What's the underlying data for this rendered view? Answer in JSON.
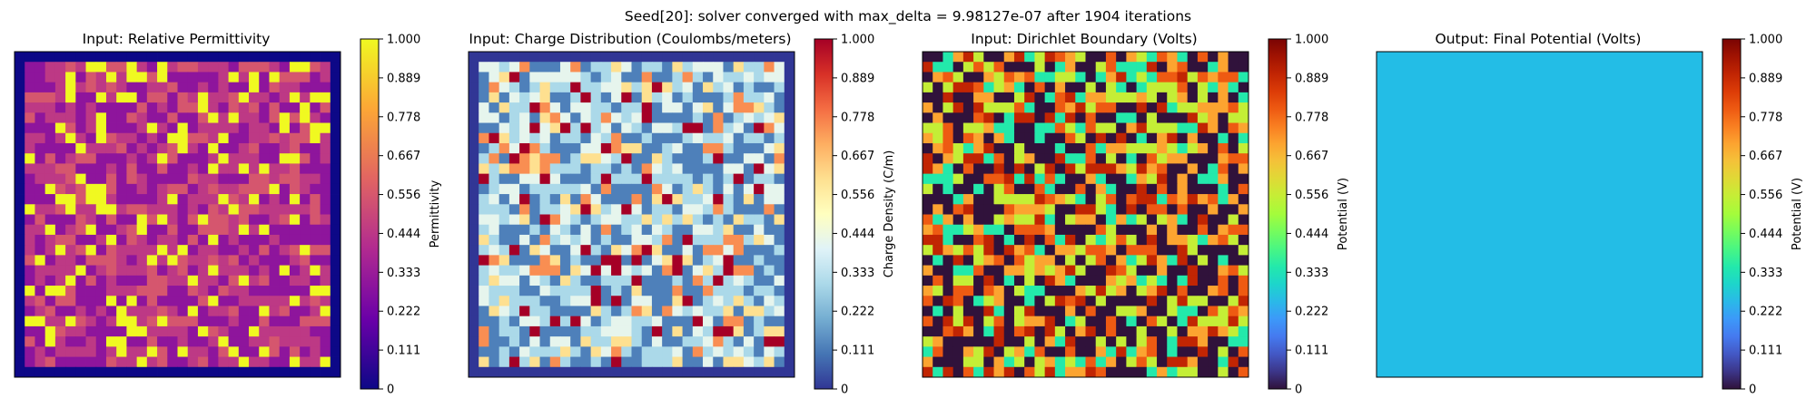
{
  "figure": {
    "suptitle": "Seed[20]: solver converged with max_delta = 9.98127e-07 after 1904 iterations"
  },
  "chart_data": [
    {
      "type": "heatmap",
      "title": "Input: Relative Permittivity",
      "colormap": "plasma",
      "colorbar_label": "Permittivity",
      "colorbar_ticks": [
        "0",
        "0.111",
        "0.222",
        "0.333",
        "0.444",
        "0.556",
        "0.667",
        "0.778",
        "0.889",
        "1.000"
      ],
      "vmin": 0,
      "vmax": 1,
      "grid_size": 32,
      "border_value": 0.0,
      "interior_levels": [
        0.3,
        0.45,
        0.55,
        1.0
      ],
      "interior_weights": [
        0.35,
        0.3,
        0.2,
        0.15
      ]
    },
    {
      "type": "heatmap",
      "title": "Input: Charge Distribution (Coulombs/meters)",
      "colormap": "RdYlBu_r",
      "colorbar_label": "Charge Density (C/m)",
      "colorbar_ticks": [
        "0",
        "0.111",
        "0.222",
        "0.333",
        "0.444",
        "0.556",
        "0.667",
        "0.778",
        "0.889",
        "1.000"
      ],
      "vmin": 0,
      "vmax": 1,
      "grid_size": 32,
      "border_value": 0.0,
      "interior_levels": [
        0.12,
        0.3,
        0.42,
        0.6,
        0.75,
        1.0
      ],
      "interior_weights": [
        0.3,
        0.25,
        0.2,
        0.1,
        0.07,
        0.08
      ]
    },
    {
      "type": "heatmap",
      "title": "Input: Dirichlet Boundary (Volts)",
      "colormap": "turbo",
      "colorbar_label": "Potential (V)",
      "colorbar_ticks": [
        "0",
        "0.111",
        "0.222",
        "0.333",
        "0.444",
        "0.556",
        "0.667",
        "0.778",
        "0.889",
        "1.000"
      ],
      "vmin": 0,
      "vmax": 1,
      "grid_size": 32,
      "border_value": null,
      "interior_levels": [
        0.0,
        0.35,
        0.55,
        0.7,
        0.8,
        0.9
      ],
      "interior_weights": [
        0.34,
        0.13,
        0.16,
        0.14,
        0.12,
        0.11
      ]
    },
    {
      "type": "heatmap",
      "title": "Output: Final Potential (Volts)",
      "colormap": "turbo",
      "colorbar_label": "Potential (V)",
      "colorbar_ticks": [
        "0",
        "0.111",
        "0.222",
        "0.333",
        "0.444",
        "0.556",
        "0.667",
        "0.778",
        "0.889",
        "1.000"
      ],
      "vmin": 0,
      "vmax": 1,
      "grid_size": 1,
      "uniform_value": 0.4,
      "uniform_color": "#23bde6"
    }
  ],
  "colors": {
    "plasma_stops": [
      "#0d0887",
      "#6a00a8",
      "#b12a90",
      "#e16462",
      "#fca636",
      "#f0f921"
    ],
    "rdylbu_r_stops": [
      "#313695",
      "#4575b4",
      "#74add1",
      "#abd9e9",
      "#e0f3f8",
      "#ffffbf",
      "#fee090",
      "#fdae61",
      "#f46d43",
      "#d73027",
      "#a50026"
    ],
    "turbo_stops": [
      "#30123b",
      "#4145ab",
      "#4675ed",
      "#39a2fc",
      "#1bcfd4",
      "#24eca6",
      "#61fc6c",
      "#a4fc3b",
      "#d1e834",
      "#f3c63a",
      "#fe9b2d",
      "#f36315",
      "#d93806",
      "#b11901",
      "#7a0403"
    ]
  }
}
